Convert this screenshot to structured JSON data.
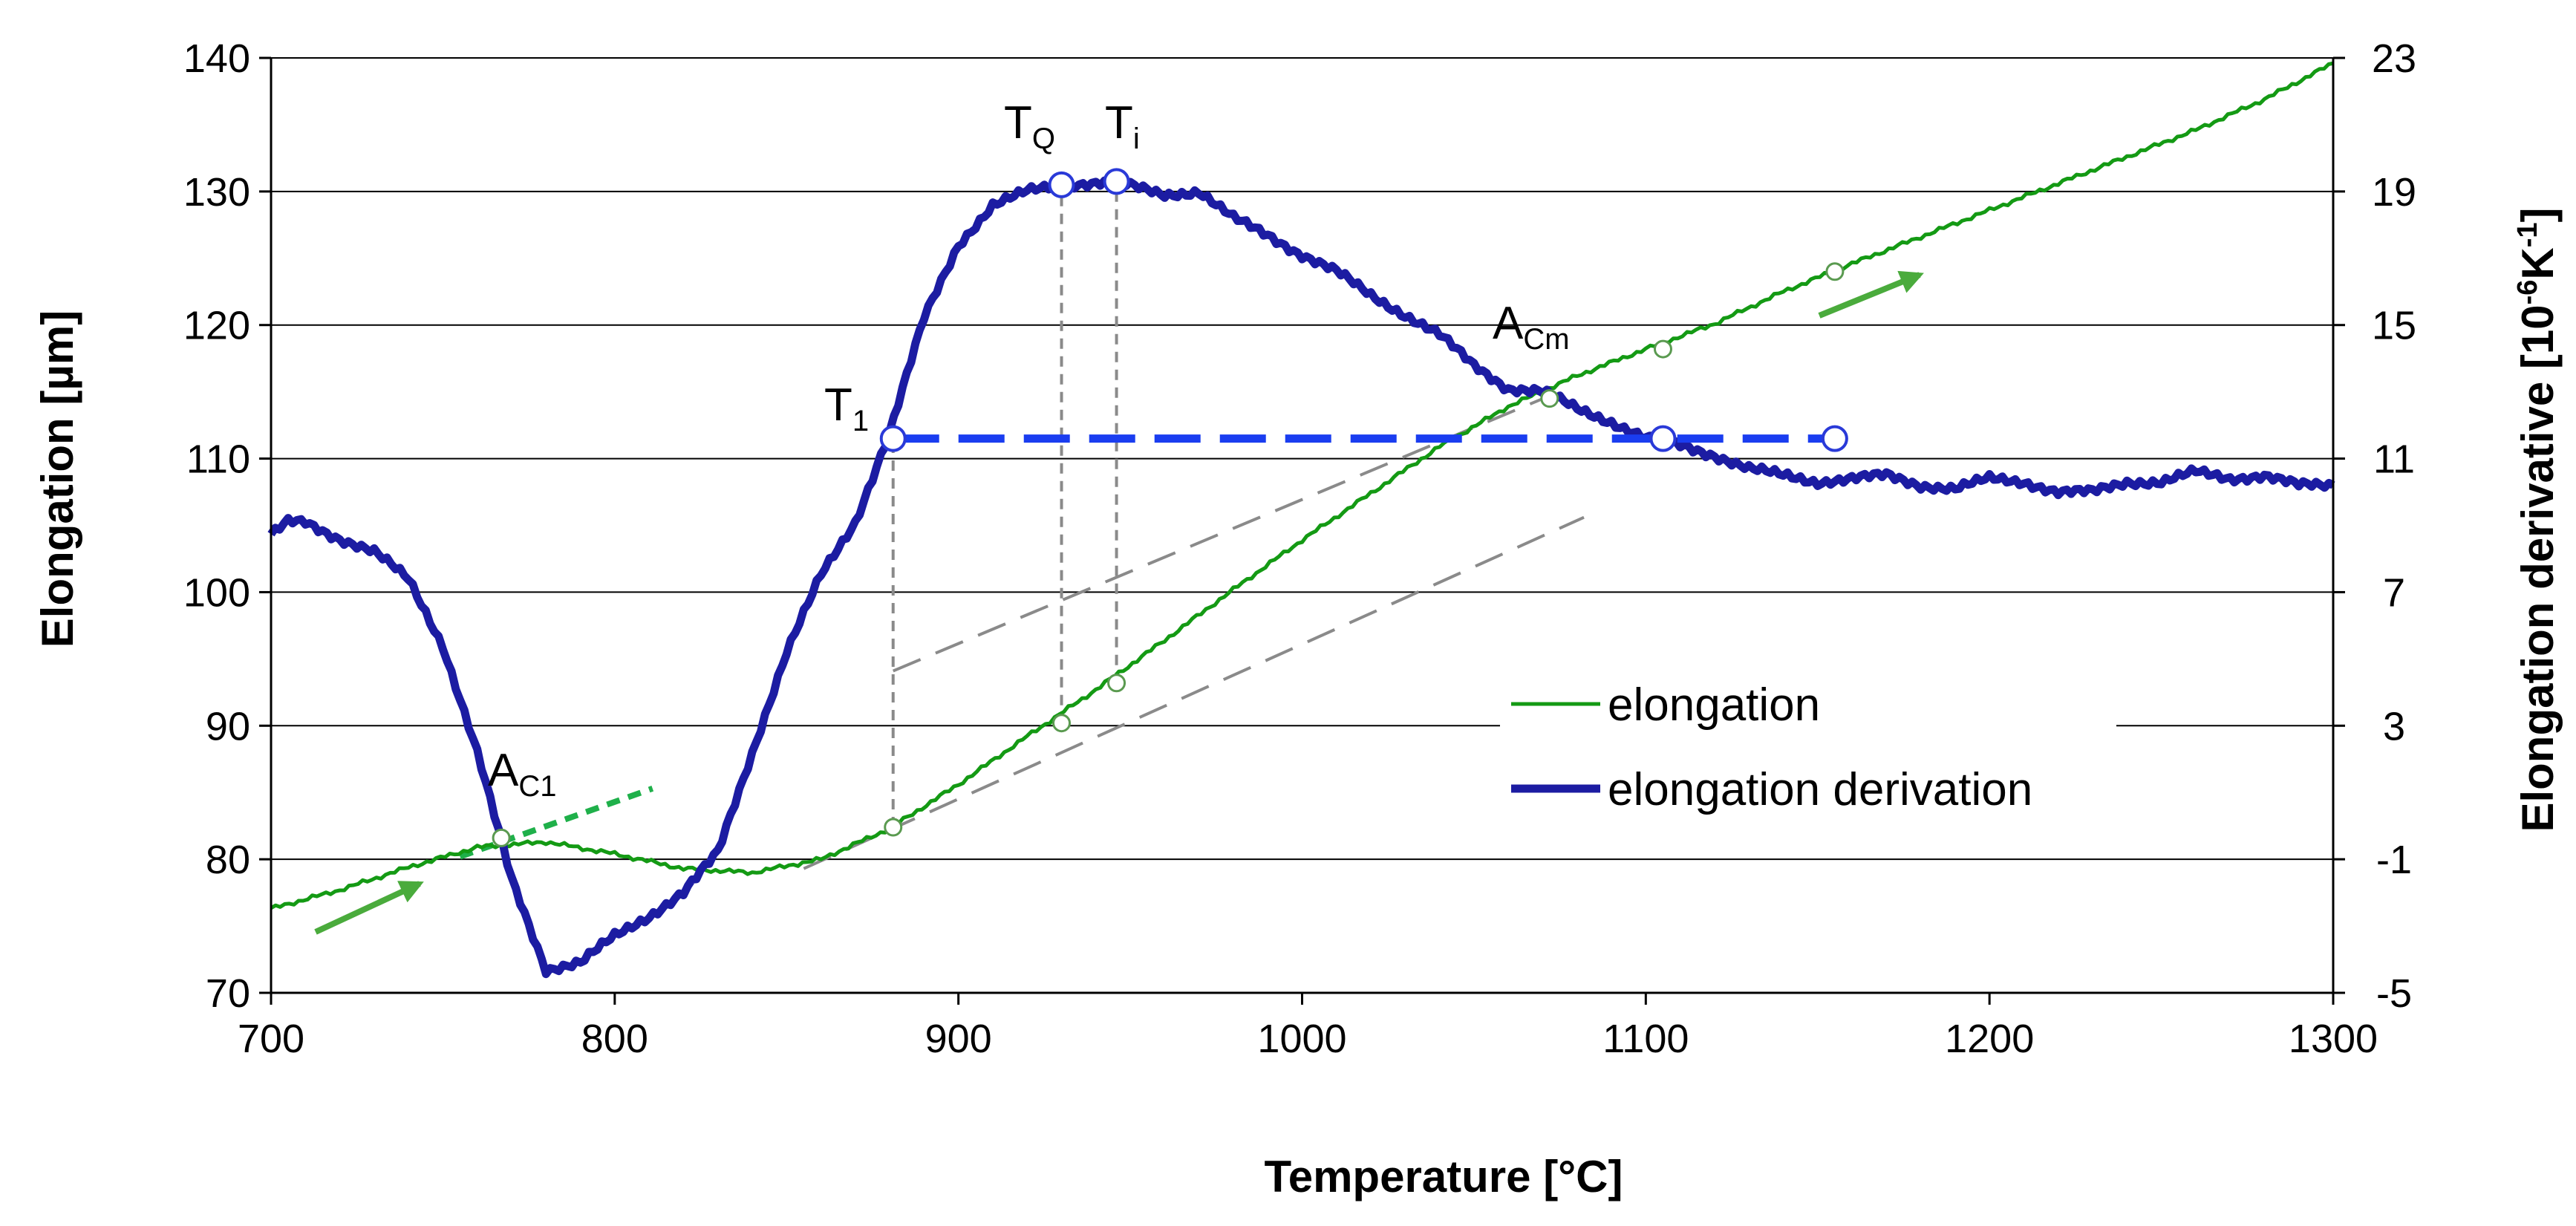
{
  "chart_data": {
    "type": "line",
    "title": "",
    "xlabel": "Temperature [°C]",
    "ylabel": "Elongation [µm]",
    "y2label_main": "Elongation derivative [10",
    "y2label_exp1": "-6",
    "y2label_mid": "K",
    "y2label_exp2": "-1",
    "y2label_end": "]",
    "xlim": [
      700,
      1300
    ],
    "ylim": [
      70,
      140
    ],
    "y2lim": [
      -5,
      23
    ],
    "xticks": [
      "700",
      "800",
      "900",
      "1000",
      "1100",
      "1200",
      "1300"
    ],
    "yticks": [
      "70",
      "80",
      "90",
      "100",
      "110",
      "120",
      "130",
      "140"
    ],
    "y2ticks": [
      "-5",
      "-1",
      "3",
      "7",
      "11",
      "15",
      "19",
      "23"
    ],
    "grid": "horizontal",
    "legend_position": "center-right",
    "series": [
      {
        "name": "elongation",
        "axis": "left",
        "color": "#149a14",
        "x": [
          700,
          720,
          740,
          760,
          780,
          800,
          820,
          840,
          860,
          880,
          900,
          920,
          940,
          960,
          980,
          1000,
          1020,
          1040,
          1060,
          1080,
          1100,
          1120,
          1140,
          1160,
          1180,
          1200,
          1220,
          1240,
          1260,
          1280,
          1300
        ],
        "y": [
          76.3,
          77.7,
          79.4,
          80.9,
          81.3,
          80.4,
          79.3,
          79.0,
          80.0,
          82.3,
          85.6,
          89.2,
          92.7,
          96.4,
          100.2,
          103.9,
          107.4,
          110.9,
          113.9,
          116.2,
          118.2,
          120.1,
          122.5,
          124.6,
          126.6,
          128.6,
          130.6,
          132.6,
          134.6,
          136.9,
          139.6
        ]
      },
      {
        "name": "elongation derivation",
        "axis": "right",
        "color": "#1c1ca2",
        "x": [
          700,
          705,
          710,
          720,
          730,
          740,
          750,
          760,
          770,
          780,
          790,
          800,
          810,
          820,
          830,
          840,
          850,
          860,
          870,
          880,
          890,
          900,
          910,
          920,
          930,
          945,
          960,
          970,
          980,
          990,
          1000,
          1010,
          1020,
          1030,
          1040,
          1050,
          1060,
          1070,
          1080,
          1090,
          1100,
          1110,
          1120,
          1130,
          1140,
          1150,
          1160,
          1170,
          1180,
          1190,
          1200,
          1210,
          1220,
          1230,
          1240,
          1250,
          1260,
          1270,
          1280,
          1290,
          1300
        ],
        "y": [
          8.7,
          9.1,
          9.1,
          8.6,
          8.2,
          7.4,
          5.4,
          2.2,
          -1.6,
          -4.3,
          -4.1,
          -3.3,
          -2.7,
          -2.0,
          -0.8,
          2.2,
          5.2,
          7.5,
          9.1,
          11.8,
          15.2,
          17.4,
          18.6,
          19.0,
          19.2,
          19.3,
          18.9,
          19.0,
          18.2,
          17.7,
          17.1,
          16.6,
          15.9,
          15.3,
          14.7,
          13.8,
          13.1,
          13.0,
          12.5,
          12.1,
          11.6,
          11.4,
          11.1,
          10.7,
          10.5,
          10.3,
          10.4,
          10.5,
          10.2,
          10.1,
          10.4,
          10.3,
          10.0,
          10.0,
          10.3,
          10.3,
          10.6,
          10.4,
          10.5,
          10.2,
          10.2
        ]
      }
    ],
    "annotations": {
      "ac1": {
        "main": "A",
        "sub": "C1",
        "x": 767
      },
      "t1": {
        "main": "T",
        "sub": "1",
        "x": 881
      },
      "tq": {
        "main": "T",
        "sub": "Q",
        "x": 930
      },
      "ti": {
        "main": "T",
        "sub": "i",
        "x": 946
      },
      "acm": {
        "main": "A",
        "sub": "Cm",
        "x": 1072
      }
    },
    "markers": {
      "t1_level_derivative": 11.6,
      "blue_points": [
        {
          "x": 881,
          "y2": 11.6
        },
        {
          "x": 930,
          "y2": 19.2
        },
        {
          "x": 946,
          "y2": 19.3
        },
        {
          "x": 1105,
          "y2": 11.6
        },
        {
          "x": 1155,
          "y2": 11.6
        }
      ],
      "green_points": [
        {
          "x": 767,
          "y": 81.6
        },
        {
          "x": 881,
          "y": 82.4
        },
        {
          "x": 930,
          "y": 90.2
        },
        {
          "x": 946,
          "y": 93.2
        },
        {
          "x": 1072,
          "y": 114.5
        },
        {
          "x": 1105,
          "y": 118.2
        },
        {
          "x": 1155,
          "y": 124.0
        }
      ]
    },
    "colors": {
      "arrow": "#4aab3c",
      "ac1_tangent": "#1fb04a",
      "t1_line": "#1a3df0",
      "guide": "#8a8a8a",
      "marker_fill": "#ffffff"
    }
  }
}
